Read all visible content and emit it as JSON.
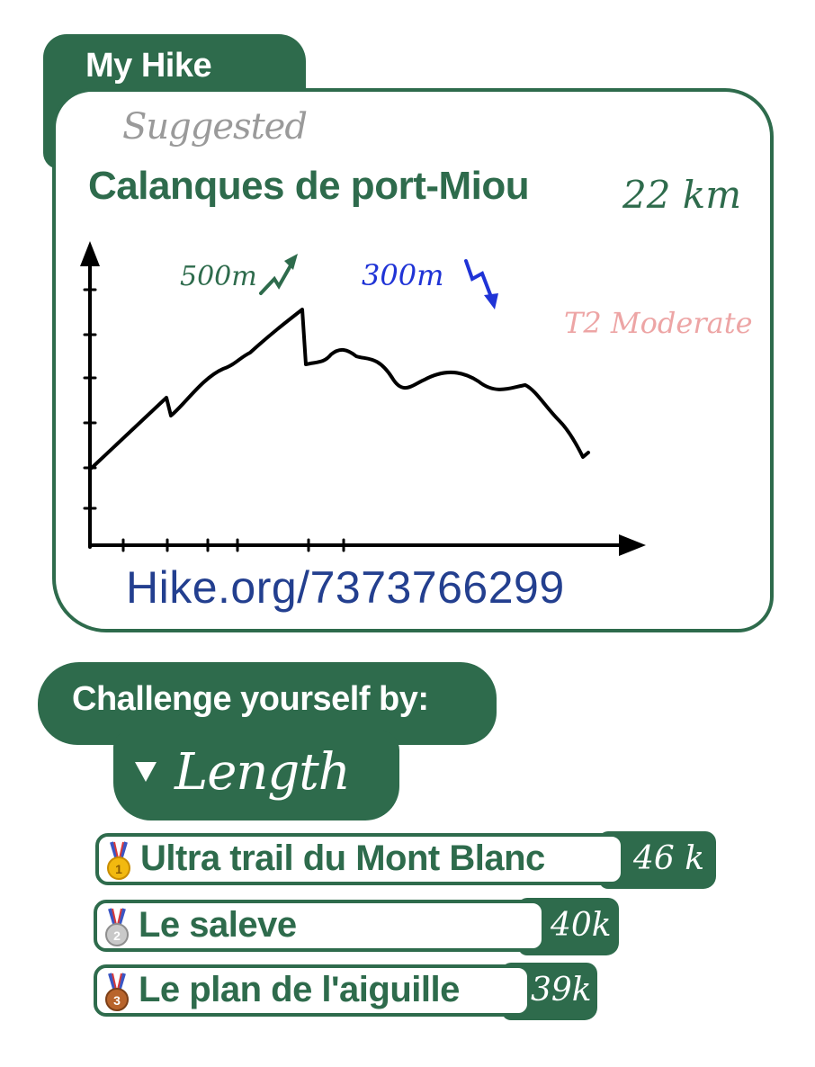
{
  "header": {
    "title": "My Hike"
  },
  "hike": {
    "tag": "Suggested",
    "name": "Calanques de port-Miou",
    "distance": "22 km",
    "ascent": "500m",
    "descent": "300m",
    "difficulty": "T2 Moderate",
    "link": "Hike.org/7373766299"
  },
  "colors": {
    "brand": "#2e6b4c",
    "descent": "#1f33d6",
    "difficulty": "#eda5a5",
    "link": "#233f8f",
    "muted": "#9a9a9a"
  },
  "challenge": {
    "title": "Challenge yourself by:",
    "sort_option": "Length",
    "ranking": [
      {
        "rank": "1",
        "medal": "gold-medal-icon",
        "name": "Ultra trail du Mont Blanc",
        "value": "46 k"
      },
      {
        "rank": "2",
        "medal": "silver-medal-icon",
        "name": "Le saleve",
        "value": "40k"
      },
      {
        "rank": "3",
        "medal": "bronze-medal-icon",
        "name": "Le plan de l'aiguille",
        "value": "39k"
      }
    ]
  }
}
